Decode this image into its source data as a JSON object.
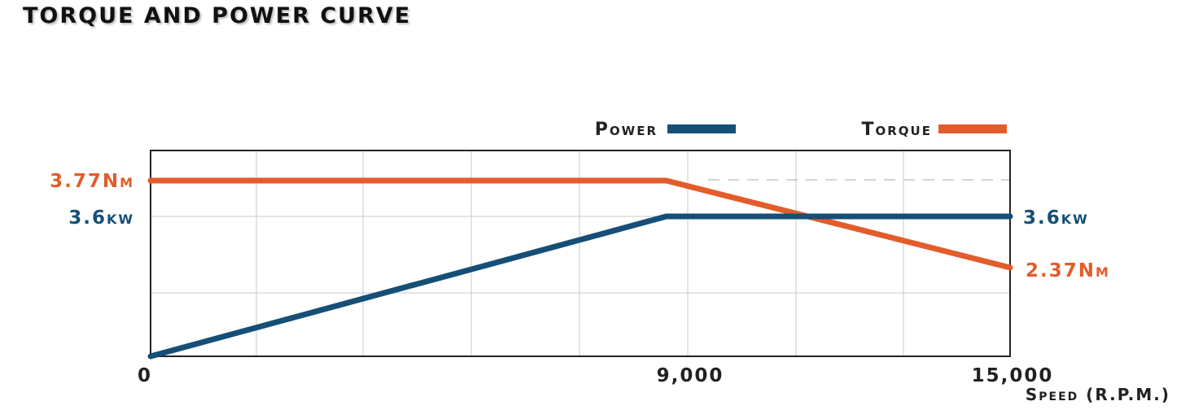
{
  "title": "TORQUE AND POWER CURVE",
  "colors": {
    "power": "#154f77",
    "torque": "#e35c2b",
    "grid": "#c8c8c8",
    "axis": "#222222",
    "text": "#222222"
  },
  "chart_data": {
    "type": "line",
    "title": "TORQUE AND POWER CURVE",
    "xlabel": "Speed (R.P.M.)",
    "xlim": [
      0,
      15000
    ],
    "x_ticks": [
      {
        "value": 0,
        "label": "0"
      },
      {
        "value": 9000,
        "label": "9,000"
      },
      {
        "value": 15000,
        "label": "15,000"
      }
    ],
    "grid": true,
    "legend_position": "top-right",
    "series": [
      {
        "name": "Power",
        "unit": "kW",
        "color": "#154f77",
        "points": [
          {
            "x": 0,
            "y": 0
          },
          {
            "x": 9000,
            "y": 3.6
          },
          {
            "x": 15000,
            "y": 3.6
          }
        ],
        "labels": {
          "left": "3.6kw",
          "right": "3.6kw"
        }
      },
      {
        "name": "Torque",
        "unit": "Nm",
        "color": "#e35c2b",
        "points": [
          {
            "x": 0,
            "y": 3.77
          },
          {
            "x": 9000,
            "y": 3.77
          },
          {
            "x": 15000,
            "y": 2.37
          }
        ],
        "labels": {
          "left": "3.77Nm",
          "right": "2.37Nm"
        }
      }
    ]
  }
}
